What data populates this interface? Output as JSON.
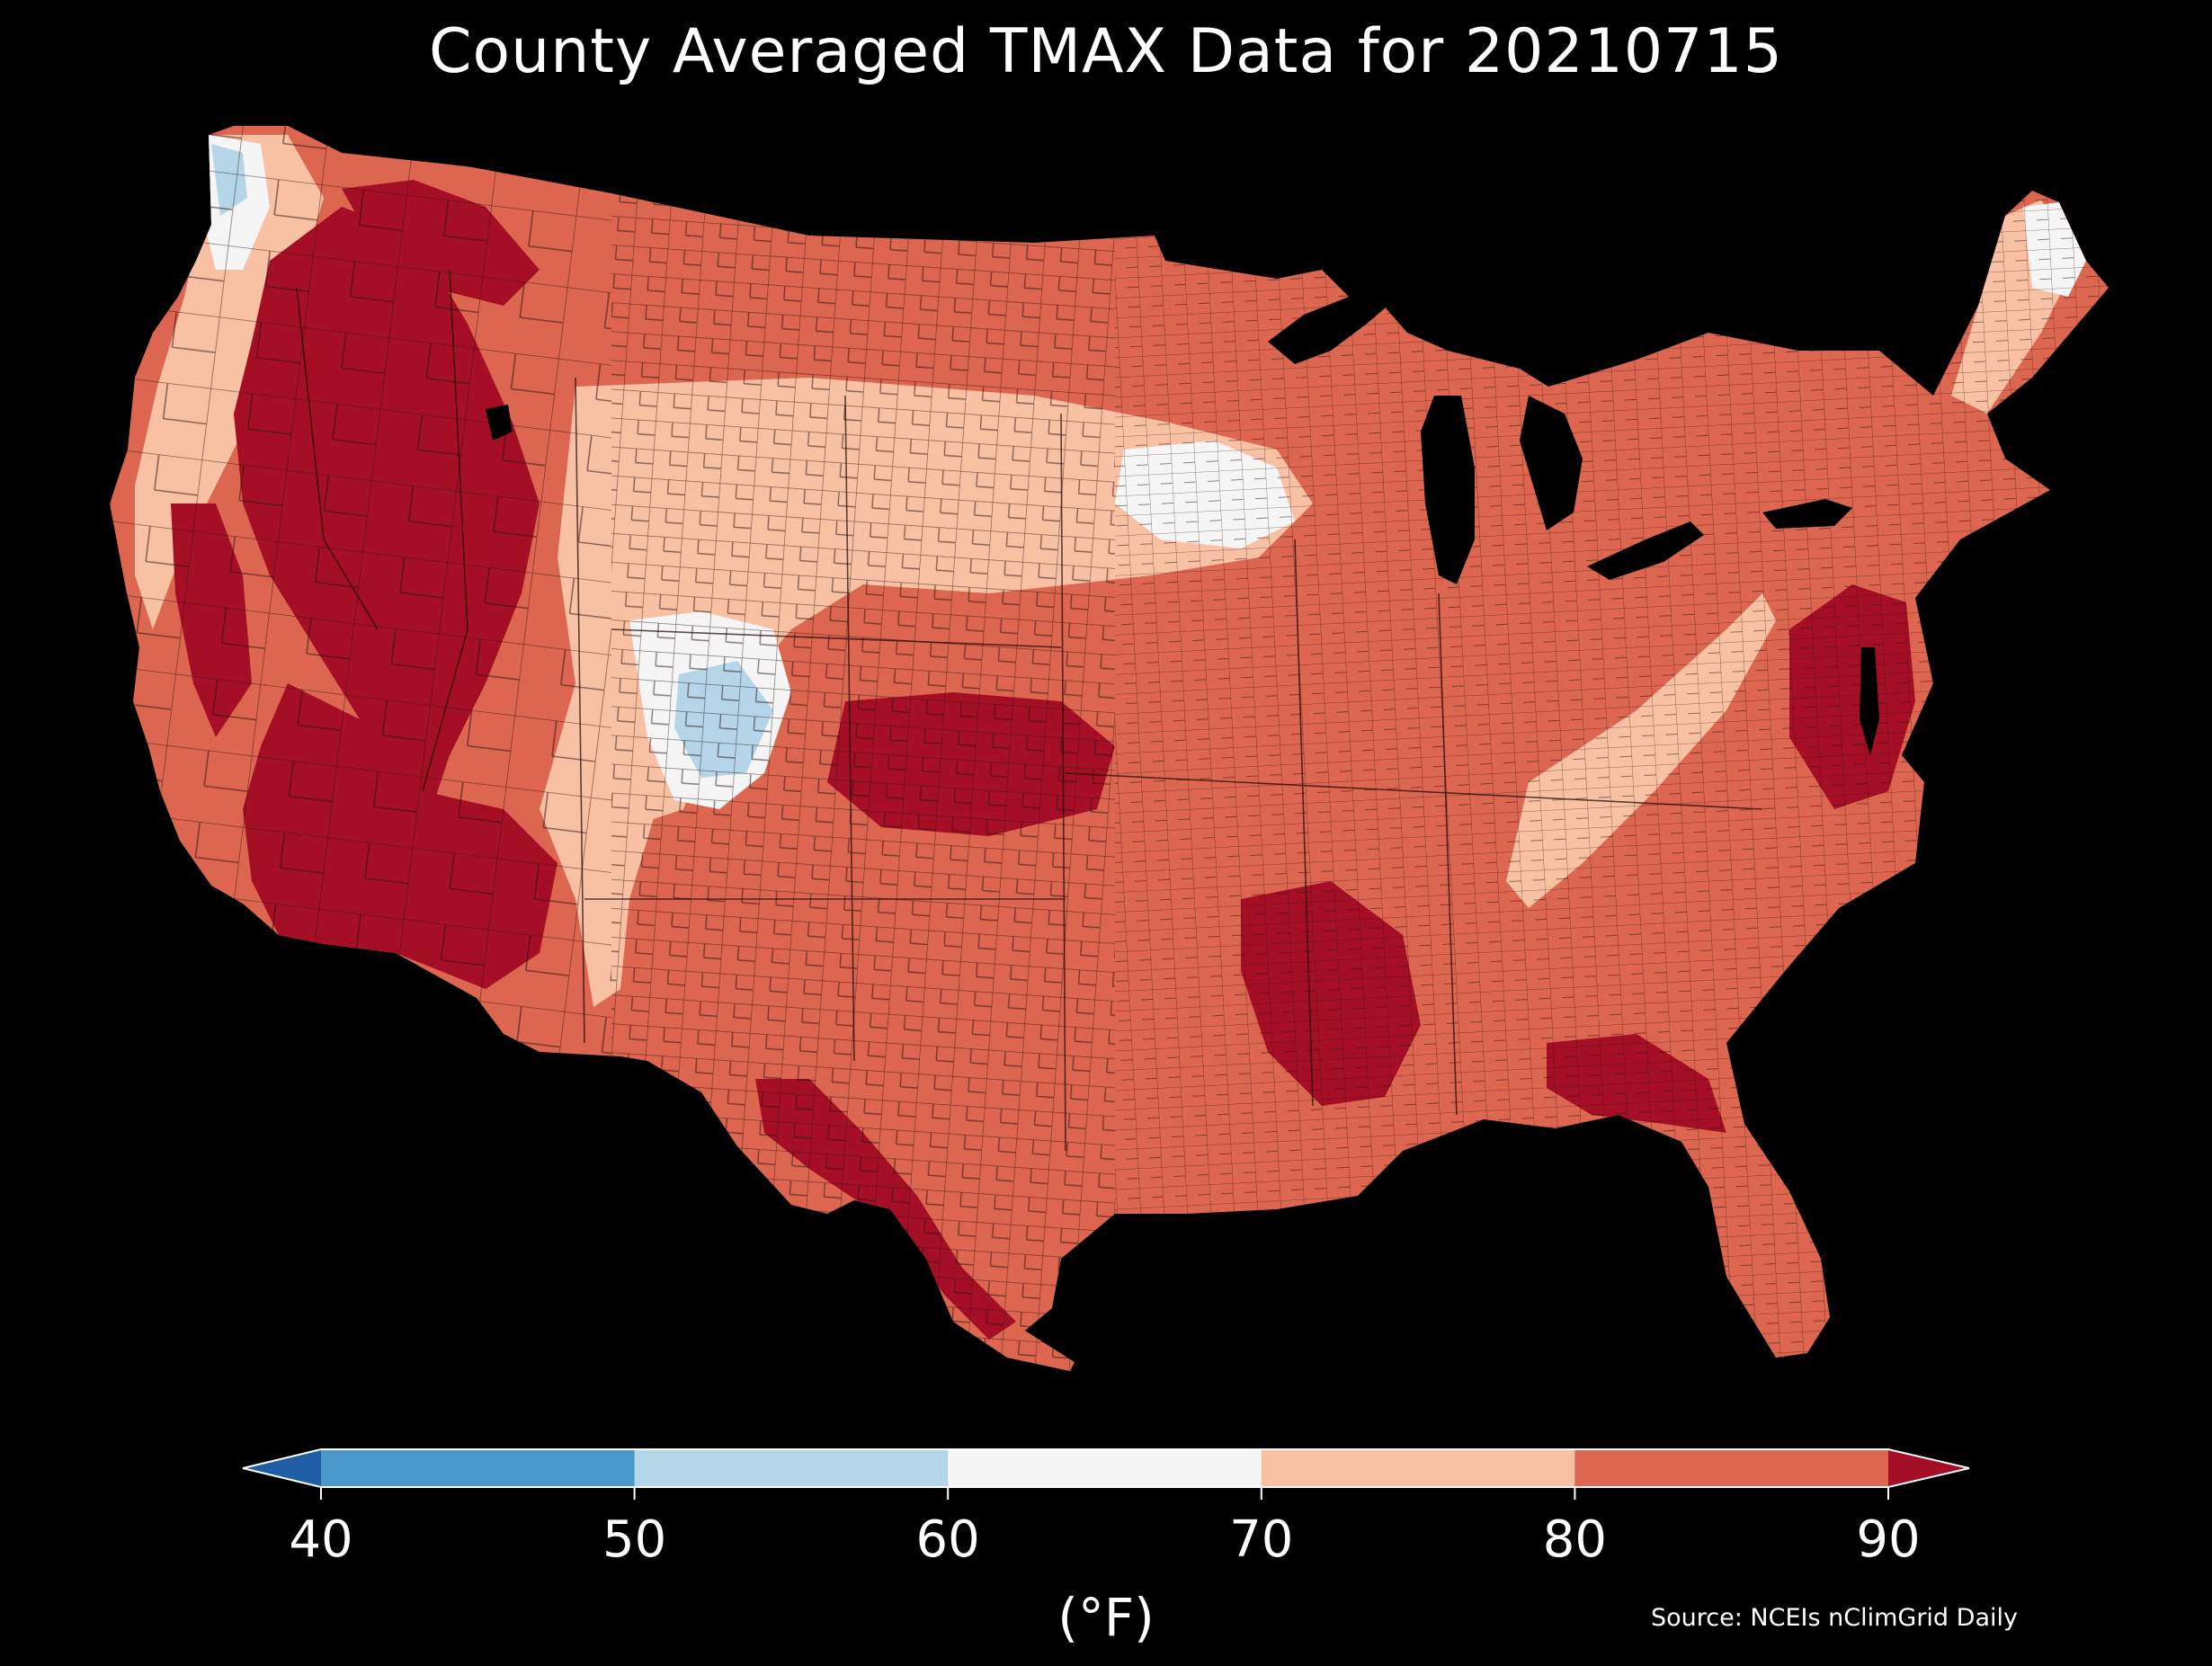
{
  "title": "County Averaged TMAX Data for 20210715",
  "source_text": "Source: NCEIs nClimGrid Daily",
  "colorbar": {
    "label": "(°F)",
    "ticks": [
      "40",
      "50",
      "60",
      "70",
      "80",
      "90"
    ],
    "bins": [
      {
        "min": null,
        "max": 40,
        "color": "#1f5da5"
      },
      {
        "min": 40,
        "max": 50,
        "color": "#4a98c9"
      },
      {
        "min": 50,
        "max": 60,
        "color": "#b4d6e8"
      },
      {
        "min": 60,
        "max": 70,
        "color": "#f5f5f5"
      },
      {
        "min": 70,
        "max": 80,
        "color": "#f8c1a4"
      },
      {
        "min": 80,
        "max": 90,
        "color": "#dc6650"
      },
      {
        "min": 90,
        "max": null,
        "color": "#a50f26"
      }
    ],
    "extend": "both"
  },
  "colors": {
    "background": "#000000",
    "county_border": "#2a1010",
    "water": "#000000"
  },
  "map": {
    "region": "Contiguous United States",
    "variable": "TMAX",
    "date": "20210715",
    "county_boundaries": true
  }
}
